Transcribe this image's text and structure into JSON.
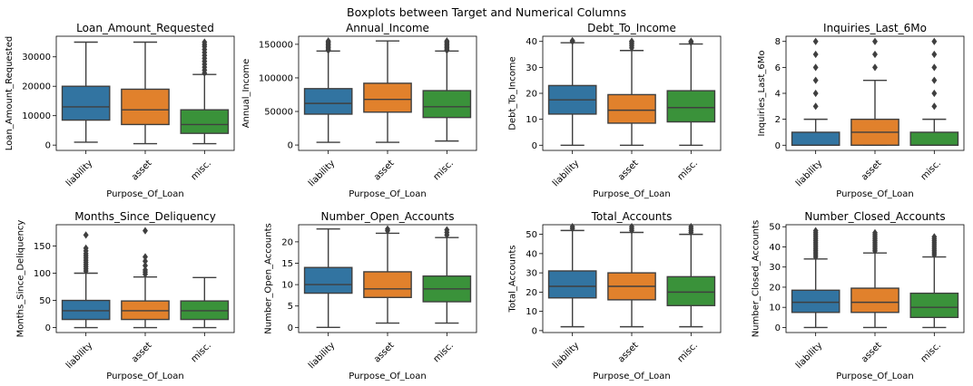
{
  "chart_data": {
    "type": "boxplot",
    "title": "Boxplots between Target and Numerical Columns",
    "categories": [
      "liability",
      "asset",
      "misc."
    ],
    "colors": [
      "#3274a1",
      "#e1812c",
      "#3a923a"
    ],
    "xlabel": "Purpose_Of_Loan",
    "subplots": [
      {
        "title": "Loan_Amount_Requested",
        "ylabel": "Loan_Amount_Requested",
        "ylim": [
          -1800,
          37000
        ],
        "yticks": [
          0,
          10000,
          20000,
          30000
        ],
        "boxes": [
          {
            "whislo": 1000,
            "q1": 8500,
            "med": 13000,
            "q3": 20000,
            "whishi": 35000,
            "fliers": []
          },
          {
            "whislo": 500,
            "q1": 7000,
            "med": 12000,
            "q3": 19000,
            "whishi": 35000,
            "fliers": []
          },
          {
            "whislo": 500,
            "q1": 4000,
            "med": 7000,
            "q3": 12000,
            "whishi": 24000,
            "fliers": [
              24500,
              25500,
              26500,
              27500,
              28500,
              29500,
              30500,
              31500,
              32500,
              33500,
              34200,
              35000
            ]
          }
        ]
      },
      {
        "title": "Annual_Income",
        "ylabel": "Annual_Income",
        "ylim": [
          -8000,
          162000
        ],
        "yticks": [
          0,
          50000,
          100000,
          150000
        ],
        "boxes": [
          {
            "whislo": 4000,
            "q1": 46000,
            "med": 62000,
            "q3": 84000,
            "whishi": 140000,
            "fliers": [
              141000,
              143000,
              145000,
              147000,
              149000,
              151000,
              153000,
              155000
            ]
          },
          {
            "whislo": 4000,
            "q1": 49000,
            "med": 68000,
            "q3": 92000,
            "whishi": 155000,
            "fliers": []
          },
          {
            "whislo": 6000,
            "q1": 41000,
            "med": 57000,
            "q3": 81000,
            "whishi": 140000,
            "fliers": [
              141000,
              143000,
              145000,
              147000,
              149000,
              151000,
              153000,
              155000
            ]
          }
        ]
      },
      {
        "title": "Debt_To_Income",
        "ylabel": "Debt_To_Income",
        "ylim": [
          -2,
          42
        ],
        "yticks": [
          0,
          10,
          20,
          30,
          40
        ],
        "boxes": [
          {
            "whislo": 0,
            "q1": 12,
            "med": 17.5,
            "q3": 23,
            "whishi": 39.5,
            "fliers": [
              40,
              40.3
            ]
          },
          {
            "whislo": 0,
            "q1": 8.5,
            "med": 13.5,
            "q3": 19.5,
            "whishi": 36.5,
            "fliers": [
              37.5,
              38.3,
              39,
              39.6,
              40.1
            ]
          },
          {
            "whislo": 0,
            "q1": 9,
            "med": 14.5,
            "q3": 21,
            "whishi": 39,
            "fliers": [
              39.6,
              40.1
            ]
          }
        ]
      },
      {
        "title": "Inquiries_Last_6Mo",
        "ylabel": "Inquiries_Last_6Mo",
        "ylim": [
          -0.4,
          8.4
        ],
        "yticks": [
          0,
          2,
          4,
          6,
          8
        ],
        "boxes": [
          {
            "whislo": 0,
            "q1": 0,
            "med": 0,
            "q3": 1,
            "whishi": 2,
            "fliers": [
              3,
              4,
              5,
              6,
              7,
              8
            ]
          },
          {
            "whislo": 0,
            "q1": 0,
            "med": 1,
            "q3": 2,
            "whishi": 5,
            "fliers": [
              6,
              7,
              8
            ]
          },
          {
            "whislo": 0,
            "q1": 0,
            "med": 0,
            "q3": 1,
            "whishi": 2,
            "fliers": [
              3,
              4,
              5,
              6,
              7,
              8
            ]
          }
        ]
      },
      {
        "title": "Months_Since_Deliquency",
        "ylabel": "Months_Since_Deliquency",
        "ylim": [
          -9,
          189
        ],
        "yticks": [
          0,
          50,
          100,
          150
        ],
        "boxes": [
          {
            "whislo": 0,
            "q1": 15,
            "med": 31,
            "q3": 50,
            "whishi": 100,
            "fliers": [
              104,
              108,
              112,
              116,
              120,
              124,
              128,
              132,
              136,
              141,
              146,
              170
            ]
          },
          {
            "whislo": 0,
            "q1": 15,
            "med": 31,
            "q3": 49,
            "whishi": 93,
            "fliers": [
              98,
              102,
              106,
              114,
              122,
              130,
              178
            ]
          },
          {
            "whislo": 0,
            "q1": 15,
            "med": 31,
            "q3": 49,
            "whishi": 92,
            "fliers": []
          }
        ]
      },
      {
        "title": "Number_Open_Accounts",
        "ylabel": "Number_Open_Accounts",
        "ylim": [
          -1.2,
          24
        ],
        "yticks": [
          0,
          5,
          10,
          15,
          20
        ],
        "boxes": [
          {
            "whislo": 0,
            "q1": 8,
            "med": 10,
            "q3": 14,
            "whishi": 23,
            "fliers": []
          },
          {
            "whislo": 1,
            "q1": 7,
            "med": 9,
            "q3": 13,
            "whishi": 22,
            "fliers": [
              22.6,
              23
            ]
          },
          {
            "whislo": 1,
            "q1": 6,
            "med": 9,
            "q3": 12,
            "whishi": 21,
            "fliers": [
              21.6,
              22.2,
              22.8
            ]
          }
        ]
      },
      {
        "title": "Total_Accounts",
        "ylabel": "Total_Accounts",
        "ylim": [
          -1,
          55
        ],
        "yticks": [
          0,
          10,
          20,
          30,
          40,
          50
        ],
        "boxes": [
          {
            "whislo": 2,
            "q1": 17,
            "med": 23,
            "q3": 31,
            "whishi": 52,
            "fliers": [
              53,
              54
            ]
          },
          {
            "whislo": 2,
            "q1": 16,
            "med": 23,
            "q3": 30,
            "whishi": 51,
            "fliers": [
              52,
              53,
              54
            ]
          },
          {
            "whislo": 2,
            "q1": 13,
            "med": 20,
            "q3": 28,
            "whishi": 50,
            "fliers": [
              51,
              52,
              53,
              54
            ]
          }
        ]
      },
      {
        "title": "Number_Closed_Accounts",
        "ylabel": "Number_Closed_Accounts",
        "ylim": [
          -2.5,
          51
        ],
        "yticks": [
          0,
          10,
          20,
          30,
          40,
          50
        ],
        "boxes": [
          {
            "whislo": 0,
            "q1": 7.5,
            "med": 12.5,
            "q3": 18.5,
            "whishi": 34,
            "fliers": [
              35,
              36,
              37,
              38,
              39,
              40,
              41,
              42,
              43,
              44,
              45,
              46,
              47,
              48
            ]
          },
          {
            "whislo": 0,
            "q1": 7.5,
            "med": 12.5,
            "q3": 19.5,
            "whishi": 37,
            "fliers": [
              38,
              39,
              40,
              41,
              42,
              43,
              44,
              45,
              46,
              47
            ]
          },
          {
            "whislo": 0,
            "q1": 5,
            "med": 10,
            "q3": 17,
            "whishi": 35,
            "fliers": [
              36,
              37,
              38,
              39,
              40,
              41,
              42,
              43,
              44,
              45
            ]
          }
        ]
      }
    ]
  }
}
